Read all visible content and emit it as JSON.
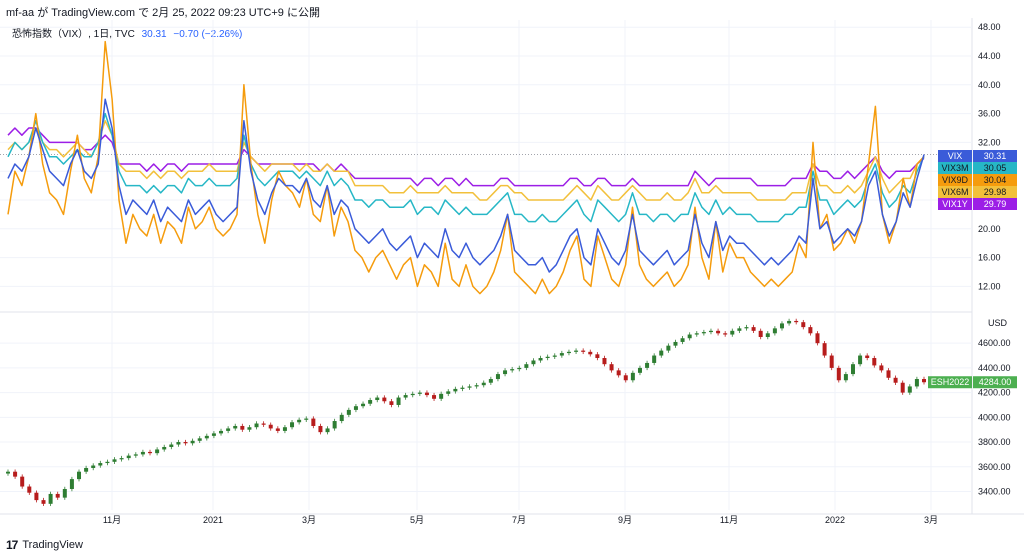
{
  "header": {
    "user": "mf-aa",
    "ga": "が",
    "site": "TradingView.com",
    "de": "で",
    "date": "2月 25, 2022 09:23 UTC+9",
    "published": "に公開"
  },
  "legend": {
    "symbol": "恐怖指数（VIX）, 1日, TVC",
    "value": "30.31",
    "change": "−0.70 (−2.26%)"
  },
  "footer": {
    "logo": "17",
    "brand": "TradingView"
  },
  "colors": {
    "VIX": "#3a5bd9",
    "VIX3M": "#26b7c6",
    "VIX9D": "#f59c0d",
    "VIX6M": "#f2c03b",
    "VIX1Y": "#9c1ee6",
    "es_up": "#2e7d32",
    "es_down": "#b71c1c",
    "es_badge": "#4caf50"
  },
  "chart_data": [
    {
      "type": "line",
      "title": "恐怖指数（VIX）, 1日, TVC",
      "x_ticks": [
        "11月",
        "2021",
        "3月",
        "5月",
        "7月",
        "9月",
        "11月",
        "2022",
        "3月"
      ],
      "ylim": [
        9,
        49
      ],
      "y_ticks": [
        "48.00",
        "44.00",
        "40.00",
        "36.00",
        "32.00",
        "28.00",
        "24.00",
        "20.00",
        "16.00",
        "12.00"
      ],
      "series": [
        {
          "name": "VIX",
          "last": "30.31",
          "values": [
            27,
            29,
            28,
            30,
            34,
            31,
            28,
            27,
            26,
            29,
            31,
            28,
            27,
            29,
            38,
            34,
            26,
            22,
            24,
            23,
            22,
            24,
            21,
            23,
            22,
            21,
            24,
            22,
            23,
            24,
            22,
            21,
            22,
            23,
            35,
            28,
            24,
            22,
            25,
            27,
            26,
            26,
            25,
            27,
            24,
            23,
            26,
            22,
            24,
            23,
            20,
            19,
            18,
            19,
            20,
            18,
            17,
            18,
            19,
            16,
            18,
            17,
            16,
            20,
            17,
            16,
            18,
            16,
            15,
            16,
            17,
            19,
            22,
            17,
            16,
            15,
            15,
            16,
            14,
            15,
            17,
            19,
            20,
            16,
            15,
            20,
            18,
            16,
            15,
            17,
            22,
            17,
            16,
            15,
            16,
            17,
            15,
            16,
            17,
            22,
            18,
            16,
            21,
            17,
            19,
            18,
            18,
            17,
            16,
            15,
            16,
            15,
            16,
            17,
            19,
            18,
            27,
            20,
            21,
            18,
            19,
            20,
            19,
            21,
            26,
            28,
            22,
            19,
            21,
            25,
            23,
            27,
            30.31
          ]
        },
        {
          "name": "VIX3M",
          "last": "30.05",
          "values": [
            30,
            32,
            31,
            32,
            35,
            32,
            30,
            30,
            29,
            30,
            31,
            30,
            30,
            32,
            36,
            33,
            28,
            26,
            26,
            26,
            25,
            26,
            25,
            26,
            26,
            25,
            27,
            26,
            26,
            27,
            26,
            26,
            26,
            27,
            33,
            29,
            27,
            26,
            27,
            28,
            28,
            28,
            27,
            28,
            27,
            26,
            28,
            26,
            27,
            26,
            24,
            24,
            23,
            24,
            24,
            23,
            23,
            23,
            24,
            22,
            23,
            23,
            22,
            24,
            23,
            22,
            23,
            22,
            22,
            22,
            23,
            24,
            25,
            22,
            22,
            21,
            21,
            22,
            21,
            21,
            22,
            23,
            24,
            22,
            21,
            24,
            23,
            22,
            21,
            22,
            25,
            22,
            22,
            21,
            22,
            22,
            21,
            22,
            22,
            25,
            23,
            22,
            24,
            22,
            23,
            22,
            22,
            22,
            21,
            21,
            21,
            21,
            22,
            22,
            23,
            23,
            28,
            24,
            24,
            22,
            23,
            24,
            23,
            24,
            27,
            29,
            25,
            23,
            24,
            26,
            25,
            28,
            30.05
          ]
        },
        {
          "name": "VIX9D",
          "last": "30.04",
          "values": [
            22,
            28,
            26,
            30,
            36,
            29,
            25,
            24,
            22,
            28,
            33,
            27,
            25,
            30,
            46,
            38,
            24,
            18,
            22,
            20,
            19,
            22,
            18,
            21,
            20,
            18,
            23,
            20,
            21,
            23,
            20,
            19,
            20,
            22,
            40,
            29,
            22,
            18,
            24,
            28,
            26,
            25,
            23,
            27,
            22,
            21,
            26,
            19,
            23,
            21,
            17,
            16,
            14,
            16,
            17,
            15,
            13,
            15,
            16,
            12,
            15,
            14,
            12,
            18,
            13,
            12,
            15,
            12,
            11,
            12,
            14,
            17,
            22,
            14,
            13,
            12,
            11,
            13,
            11,
            12,
            14,
            17,
            19,
            13,
            12,
            19,
            16,
            13,
            12,
            15,
            23,
            15,
            13,
            12,
            13,
            14,
            12,
            13,
            15,
            23,
            16,
            13,
            21,
            14,
            18,
            16,
            16,
            14,
            13,
            12,
            13,
            12,
            13,
            14,
            18,
            16,
            32,
            20,
            22,
            17,
            18,
            20,
            18,
            21,
            29,
            37,
            22,
            18,
            21,
            27,
            23,
            29,
            30.04
          ]
        },
        {
          "name": "VIX6M",
          "last": "29.98",
          "values": [
            31,
            32,
            31,
            32,
            34,
            32,
            31,
            31,
            30,
            31,
            32,
            31,
            30,
            32,
            35,
            33,
            29,
            28,
            28,
            28,
            27,
            28,
            27,
            28,
            28,
            27,
            28,
            28,
            28,
            29,
            28,
            28,
            28,
            28,
            32,
            30,
            29,
            28,
            29,
            29,
            29,
            29,
            28,
            29,
            28,
            28,
            29,
            28,
            28,
            28,
            26,
            26,
            26,
            26,
            26,
            25,
            25,
            25,
            26,
            25,
            25,
            25,
            25,
            26,
            25,
            25,
            25,
            25,
            24,
            24,
            25,
            26,
            26,
            25,
            25,
            24,
            24,
            24,
            24,
            24,
            24,
            25,
            26,
            25,
            24,
            26,
            25,
            24,
            24,
            25,
            26,
            25,
            24,
            24,
            24,
            25,
            24,
            24,
            25,
            27,
            25,
            25,
            26,
            25,
            25,
            25,
            25,
            25,
            24,
            24,
            24,
            24,
            24,
            25,
            25,
            25,
            29,
            26,
            26,
            25,
            25,
            26,
            25,
            26,
            28,
            30,
            27,
            25,
            26,
            27,
            27,
            29,
            29.98
          ]
        },
        {
          "name": "VIX1Y",
          "last": "29.79",
          "values": [
            33,
            34,
            33,
            34,
            34,
            33,
            32,
            32,
            32,
            32,
            32,
            31,
            31,
            32,
            33,
            32,
            29,
            29,
            29,
            29,
            28,
            29,
            28,
            29,
            29,
            28,
            29,
            29,
            29,
            29,
            29,
            29,
            29,
            29,
            31,
            30,
            29,
            29,
            29,
            29,
            29,
            29,
            29,
            29,
            29,
            28,
            29,
            28,
            29,
            28,
            27,
            27,
            27,
            27,
            27,
            27,
            27,
            27,
            27,
            26,
            27,
            27,
            26,
            27,
            27,
            26,
            27,
            26,
            26,
            26,
            26,
            27,
            27,
            26,
            26,
            26,
            26,
            26,
            26,
            26,
            26,
            27,
            27,
            26,
            26,
            27,
            27,
            26,
            26,
            26,
            27,
            26,
            26,
            26,
            26,
            26,
            26,
            26,
            26,
            28,
            27,
            26,
            27,
            27,
            27,
            27,
            27,
            27,
            26,
            26,
            26,
            26,
            26,
            27,
            27,
            27,
            29,
            28,
            28,
            27,
            27,
            28,
            27,
            28,
            29,
            30,
            28,
            27,
            28,
            28,
            28,
            29,
            29.79
          ]
        }
      ]
    },
    {
      "type": "candlestick",
      "series_name": "ESH2022",
      "last": "4284.00",
      "unit": "USD",
      "ylim": [
        3250,
        4820
      ],
      "y_ticks": [
        "4600.00",
        "4400.00",
        "4200.00",
        "4000.00",
        "3800.00",
        "3600.00",
        "3400.00"
      ],
      "close": [
        3560,
        3520,
        3440,
        3390,
        3330,
        3300,
        3380,
        3350,
        3420,
        3500,
        3560,
        3590,
        3610,
        3630,
        3640,
        3660,
        3670,
        3690,
        3700,
        3720,
        3710,
        3740,
        3760,
        3780,
        3800,
        3790,
        3810,
        3830,
        3850,
        3870,
        3890,
        3910,
        3930,
        3900,
        3920,
        3950,
        3940,
        3910,
        3890,
        3920,
        3960,
        3980,
        3990,
        3930,
        3880,
        3910,
        3970,
        4020,
        4060,
        4090,
        4110,
        4140,
        4160,
        4130,
        4100,
        4160,
        4180,
        4190,
        4200,
        4180,
        4150,
        4190,
        4210,
        4230,
        4240,
        4250,
        4260,
        4280,
        4310,
        4350,
        4380,
        4390,
        4400,
        4430,
        4460,
        4480,
        4490,
        4500,
        4520,
        4530,
        4540,
        4530,
        4510,
        4480,
        4430,
        4380,
        4340,
        4300,
        4360,
        4400,
        4440,
        4500,
        4540,
        4580,
        4610,
        4640,
        4670,
        4680,
        4690,
        4700,
        4680,
        4670,
        4700,
        4720,
        4730,
        4700,
        4650,
        4680,
        4720,
        4760,
        4780,
        4770,
        4730,
        4680,
        4600,
        4500,
        4400,
        4300,
        4350,
        4430,
        4500,
        4480,
        4420,
        4380,
        4320,
        4280,
        4200,
        4250,
        4310,
        4284
      ]
    }
  ]
}
